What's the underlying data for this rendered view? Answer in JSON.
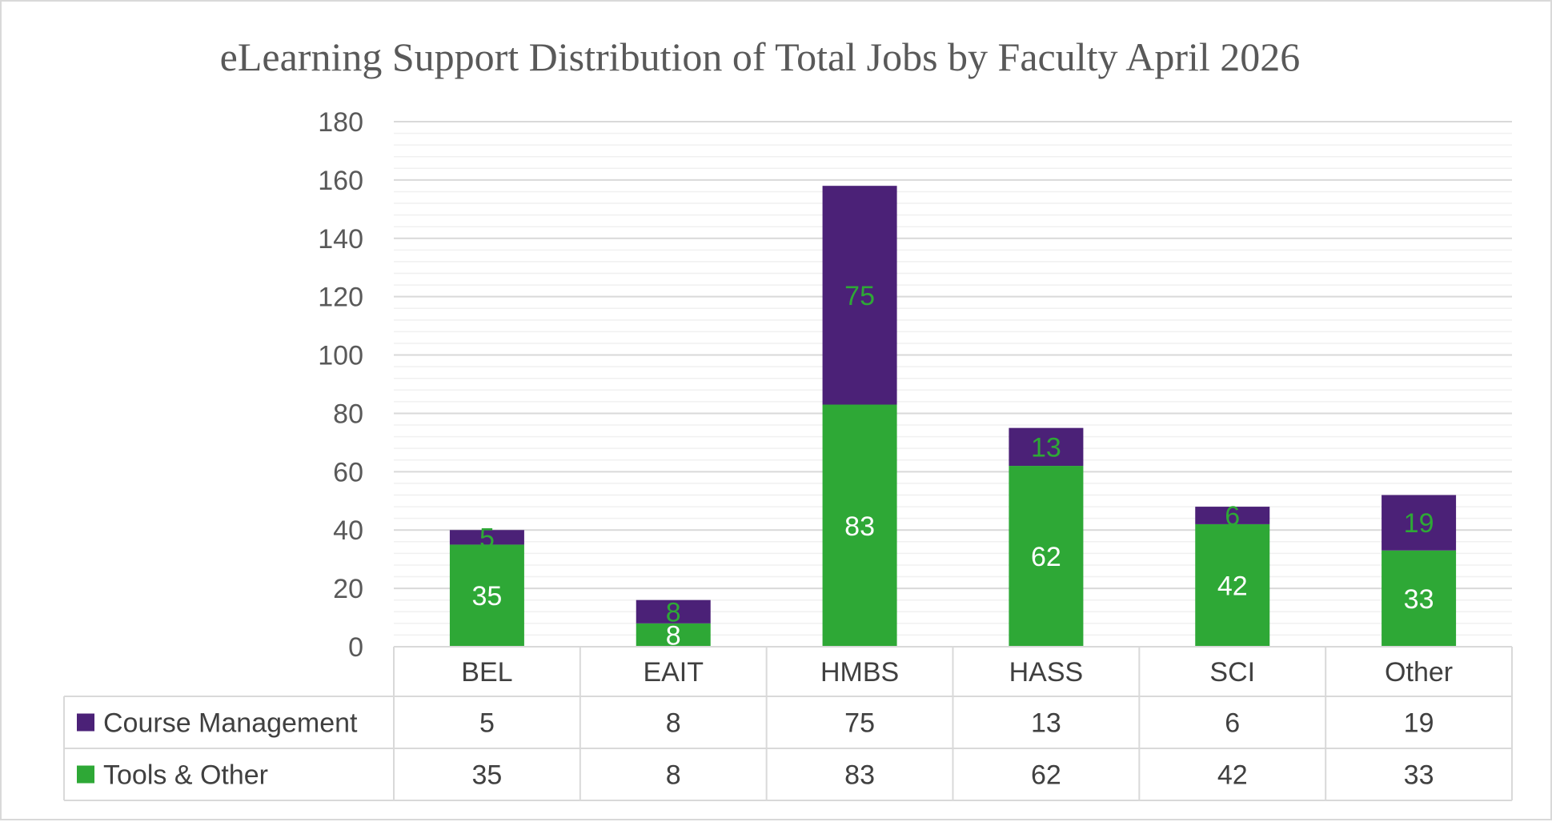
{
  "chart_data": {
    "type": "bar",
    "stacked": true,
    "title": "eLearning Support Distribution of Total Jobs by Faculty April 2026",
    "categories": [
      "BEL",
      "EAIT",
      "HMBS",
      "HASS",
      "SCI",
      "Other"
    ],
    "series": [
      {
        "name": "Tools & Other",
        "color": "#2ea836",
        "values": [
          35,
          8,
          83,
          62,
          42,
          33
        ]
      },
      {
        "name": "Course Management",
        "color": "#4b2177",
        "values": [
          5,
          8,
          75,
          13,
          6,
          19
        ]
      }
    ],
    "data_label_colors": {
      "Tools & Other": "#ffffff",
      "Course Management": "#2ea836"
    },
    "ylim": [
      0,
      180
    ],
    "yticks": [
      "0",
      "20",
      "40",
      "60",
      "80",
      "100",
      "120",
      "140",
      "160",
      "180"
    ],
    "ytick_values": [
      0,
      20,
      40,
      60,
      80,
      100,
      120,
      140,
      160,
      180
    ],
    "minor_tick_step": 4,
    "grid": true,
    "xlabel": "",
    "ylabel": "",
    "legend": "data table",
    "data_table": {
      "rows": [
        {
          "series": "Course Management",
          "values": [
            "5",
            "8",
            "75",
            "13",
            "6",
            "19"
          ]
        },
        {
          "series": "Tools & Other",
          "values": [
            "35",
            "8",
            "83",
            "62",
            "42",
            "33"
          ]
        }
      ]
    }
  }
}
